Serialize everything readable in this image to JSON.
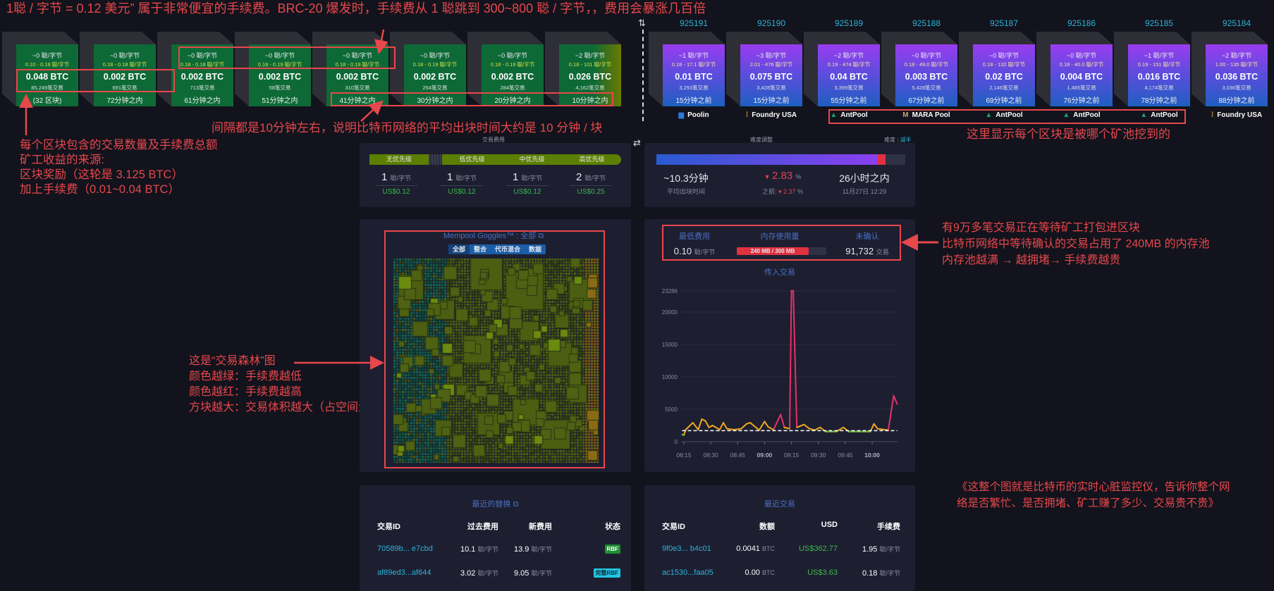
{
  "annotations": {
    "top": "1聪 / 字节 = 0.12 美元” 属于非常便宜的手续费。BRC-20 爆发时，手续费从 1 聪跳到 300~800 聪 / 字节，，费用会暴涨几百倍",
    "left": [
      "每个区块包含的交易数量及手续费总额",
      "矿工收益的来源:",
      "区块奖励（这轮是 3.125 BTC）",
      "加上手续费（0.01~0.04 BTC）"
    ],
    "interval": "间隔都是10分钟左右，说明比特币网络的平均出块时间大约是 10 分钟 / 块",
    "pools": "这里显示每个区块是被哪个矿池挖到的",
    "forest": [
      "这是“交易森林”图",
      "颜色越绿：手续费越低",
      "颜色越红：手续费越高",
      "方块越大：交易体积越大（占空间大）"
    ],
    "mempool": [
      "有9万多笔交易正在等待矿工打包进区块",
      "比特币网络中等待确认的交易占用了 240MB 的内存池",
      "内存池越满 → 越拥堵→ 手续费越贵"
    ],
    "summary": [
      "《这整个图就是比特币的实时心脏监控仪，告诉你整个网",
      "络是否繁忙、是否拥堵、矿工赚了多少、交易贵不贵》"
    ]
  },
  "colors": {
    "annotation": "#e8474c",
    "pending_block": "#0d6a36",
    "mined_top": "#9a3cf0",
    "mined_bottom": "#1e5fc0",
    "link": "#2bb3d8"
  },
  "icons": {
    "swap_vertical": "⇅",
    "swap_horizontal": "⇄",
    "external_link": "⧉"
  },
  "pending_blocks": [
    {
      "fee": "~0 聪/字节",
      "range": "0.10 - 0.18 聪/字节",
      "total": "0.048 BTC",
      "tx": "85,249笔交易",
      "eta": "(32 区块)"
    },
    {
      "fee": "~0 聪/字节",
      "range": "0.18 - 0.18 聪/字节",
      "total": "0.002 BTC",
      "tx": "691笔交易",
      "eta": "72分钟之内"
    },
    {
      "fee": "~0 聪/字节",
      "range": "0.18 - 0.18 聪/字节",
      "total": "0.002 BTC",
      "tx": "713笔交易",
      "eta": "61分钟之内"
    },
    {
      "fee": "~0 聪/字节",
      "range": "0.18 - 0.19 聪/字节",
      "total": "0.002 BTC",
      "tx": "58笔交易",
      "eta": "51分钟之内"
    },
    {
      "fee": "~0 聪/字节",
      "range": "0.18 - 0.19 聪/字节",
      "total": "0.002 BTC",
      "tx": "310笔交易",
      "eta": "41分钟之内"
    },
    {
      "fee": "~0 聪/字节",
      "range": "0.18 - 0.19 聪/字节",
      "total": "0.002 BTC",
      "tx": "254笔交易",
      "eta": "30分钟之内"
    },
    {
      "fee": "~0 聪/字节",
      "range": "0.18 - 0.19 聪/字节",
      "total": "0.002 BTC",
      "tx": "284笔交易",
      "eta": "20分钟之内"
    },
    {
      "fee": "~2 聪/字节",
      "range": "0.18 - 101 聪/字节",
      "total": "0.026 BTC",
      "tx": "4,162笔交易",
      "eta": "10分钟之内"
    }
  ],
  "mined_blocks": [
    {
      "height": "925191",
      "fee": "~1 聪/字节",
      "range": "0.18 - 17.1 聪/字节",
      "total": "0.01 BTC",
      "tx": "3,293笔交易",
      "age": "15分钟之前",
      "pool": "Poolin",
      "pool_icon": "poolin-icon"
    },
    {
      "height": "925190",
      "fee": "~3 聪/字节",
      "range": "2.01 - 476 聪/字节",
      "total": "0.075 BTC",
      "tx": "3,428笔交易",
      "age": "15分钟之前",
      "pool": "Foundry USA",
      "pool_icon": "foundry-icon"
    },
    {
      "height": "925189",
      "fee": "~2 聪/字节",
      "range": "0.19 - 474 聪/字节",
      "total": "0.04 BTC",
      "tx": "3,399笔交易",
      "age": "55分钟之前",
      "pool": "AntPool",
      "pool_icon": "antpool-icon"
    },
    {
      "height": "925188",
      "fee": "~0 聪/字节",
      "range": "0.18 - 49.0 聪/字节",
      "total": "0.003 BTC",
      "tx": "5,428笔交易",
      "age": "67分钟之前",
      "pool": "MARA Pool",
      "pool_icon": "mara-icon"
    },
    {
      "height": "925187",
      "fee": "~0 聪/字节",
      "range": "0.18 - 132 聪/字节",
      "total": "0.02 BTC",
      "tx": "2,146笔交易",
      "age": "69分钟之前",
      "pool": "AntPool",
      "pool_icon": "antpool-icon"
    },
    {
      "height": "925186",
      "fee": "~0 聪/字节",
      "range": "0.18 - 40.0 聪/字节",
      "total": "0.004 BTC",
      "tx": "1,485笔交易",
      "age": "76分钟之前",
      "pool": "AntPool",
      "pool_icon": "antpool-icon"
    },
    {
      "height": "925185",
      "fee": "~1 聪/字节",
      "range": "0.19 - 151 聪/字节",
      "total": "0.016 BTC",
      "tx": "4,174笔交易",
      "age": "78分钟之前",
      "pool": "AntPool",
      "pool_icon": "antpool-icon"
    },
    {
      "height": "925184",
      "fee": "~2 聪/字节",
      "range": "1.00 - 135 聪/字节",
      "total": "0.036 BTC",
      "tx": "3,036笔交易",
      "age": "88分钟之前",
      "pool": "Foundry USA",
      "pool_icon": "foundry-icon"
    }
  ],
  "fees": {
    "title": "交易费用",
    "priorities": [
      {
        "label": "无优先级",
        "value": "1",
        "unit": "聪/字节",
        "usd": "US$0.12"
      },
      {
        "label": "低优先级",
        "value": "1",
        "unit": "聪/字节",
        "usd": "US$0.12"
      },
      {
        "label": "中优先级",
        "value": "1",
        "unit": "聪/字节",
        "usd": "US$0.12"
      },
      {
        "label": "高优先级",
        "value": "2",
        "unit": "聪/字节",
        "usd": "US$0.25"
      }
    ]
  },
  "difficulty": {
    "title": "难度调整",
    "tab_difficulty": "难度",
    "tab_halving": "减半",
    "progress_percent": 92,
    "avg_block_time": "~10.3分钟",
    "avg_block_time_label": "平均出块时间",
    "change": "2.83",
    "change_unit": "%",
    "previous_label": "之前:",
    "previous": "2.37",
    "remaining": "26小时之内",
    "date": "11月27日 12:29"
  },
  "goggles": {
    "title": "Mempool Goggles™ : 全部",
    "filters": [
      "全部",
      "整合",
      "代币混合",
      "数据"
    ],
    "active_filter": "全部"
  },
  "mempool": {
    "min_fee_label": "最低费用",
    "min_fee": "0.10",
    "min_fee_unit": "聪/字节",
    "memory_label": "内存使用量",
    "memory": "240 MB / 300 MB",
    "memory_fraction": 0.8,
    "unconfirmed_label": "未确认",
    "unconfirmed": "91,732",
    "unconfirmed_unit": "交易"
  },
  "chart_data": {
    "type": "line",
    "title": "传入交易",
    "ylim": [
      0,
      23286
    ],
    "yticks": [
      "0",
      "5000",
      "10000",
      "15000",
      "20000",
      "23286"
    ],
    "xticks": [
      "08:15",
      "08:30",
      "08:45",
      "09:00",
      "09:15",
      "09:30",
      "09:45",
      "10:00"
    ],
    "bold_xticks": [
      "09:00",
      "10:00"
    ],
    "reference_line": 1700,
    "grid": true,
    "x": [
      "08:14",
      "08:15",
      "08:16",
      "08:20",
      "08:23",
      "08:25",
      "08:27",
      "08:29",
      "08:31",
      "08:35",
      "08:37",
      "08:39",
      "08:43",
      "08:47",
      "08:50",
      "08:52",
      "08:57",
      "09:00",
      "09:02",
      "09:05",
      "09:09",
      "09:11",
      "09:14",
      "09:15",
      "09:16",
      "09:18",
      "09:22",
      "09:25",
      "09:28",
      "09:31",
      "09:34",
      "09:40",
      "09:44",
      "09:47",
      "09:59",
      "10:01",
      "10:03",
      "10:09",
      "10:12",
      "10:14"
    ],
    "values": [
      1120,
      1000,
      1850,
      2930,
      1850,
      3470,
      3200,
      2200,
      2500,
      1850,
      2930,
      2000,
      1850,
      2000,
      2750,
      2930,
      1780,
      3110,
      2280,
      1850,
      4200,
      2200,
      2000,
      23286,
      23286,
      2200,
      2640,
      2000,
      1780,
      2200,
      1550,
      1550,
      2200,
      1550,
      1550,
      2750,
      2000,
      1780,
      7100,
      5800
    ]
  },
  "replacements": {
    "title": "最近的替换",
    "columns": [
      "交易ID",
      "过去费用",
      "新费用",
      "状态"
    ],
    "rows": [
      {
        "id": "70589b... e7cbd",
        "old": "10.1",
        "new": "13.9",
        "unit": "聪/字节",
        "status": "RBF"
      },
      {
        "id": "af89ed3...af644",
        "old": "3.02",
        "new": "9.05",
        "unit": "聪/字节",
        "status": "完整RBF"
      }
    ]
  },
  "recent": {
    "title": "最近交易",
    "columns": [
      "交易ID",
      "数额",
      "USD",
      "手续费"
    ],
    "rows": [
      {
        "id": "9f0e3... b4c01",
        "amount": "0.0041",
        "amount_unit": "BTC",
        "usd": "US$362.77",
        "fee": "1.95",
        "fee_unit": "聪/字节"
      },
      {
        "id": "ac1530...faa05",
        "amount": "0.00",
        "amount_unit": "BTC",
        "usd": "US$3.63",
        "fee": "0.18",
        "fee_unit": "聪/字节"
      }
    ]
  }
}
